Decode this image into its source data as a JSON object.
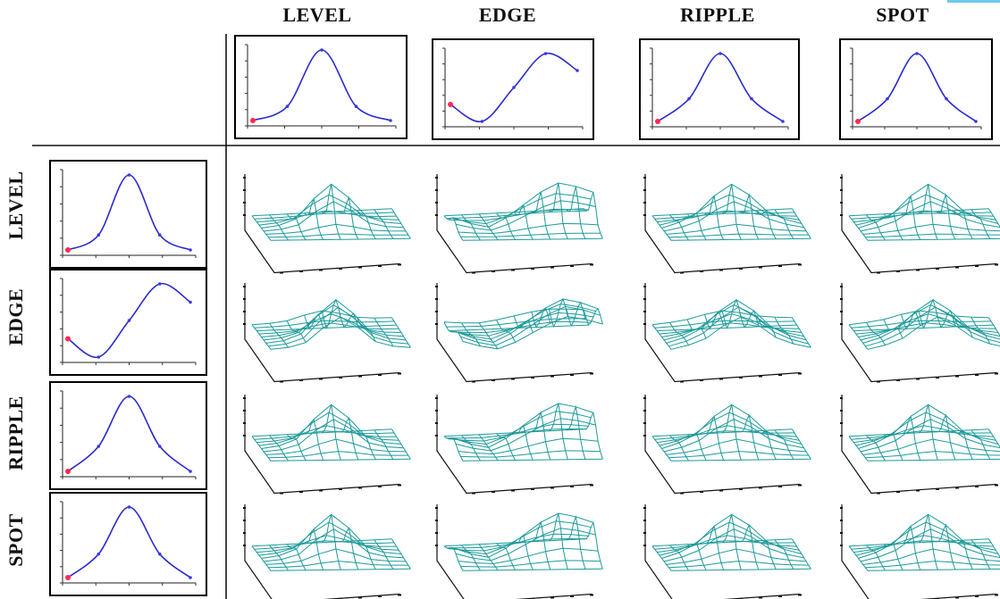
{
  "column_labels": [
    "LEVEL",
    "EDGE",
    "RIPPLE",
    "SPOT"
  ],
  "row_labels": [
    "LEVEL",
    "EDGE",
    "RIPPLE",
    "SPOT"
  ],
  "profiles": {
    "LEVEL": [
      1,
      4,
      16,
      4,
      1
    ],
    "EDGE": [
      -1,
      -2,
      0,
      2,
      1
    ],
    "RIPPLE": [
      -1,
      0,
      2,
      0,
      -1
    ],
    "SPOT": [
      -1,
      0,
      2,
      0,
      -1
    ]
  },
  "colors": {
    "curve": "#2a2ad0",
    "points": "#3a3ae0",
    "first_point": "#ff2a55",
    "mesh": "#1d9a9a"
  }
}
